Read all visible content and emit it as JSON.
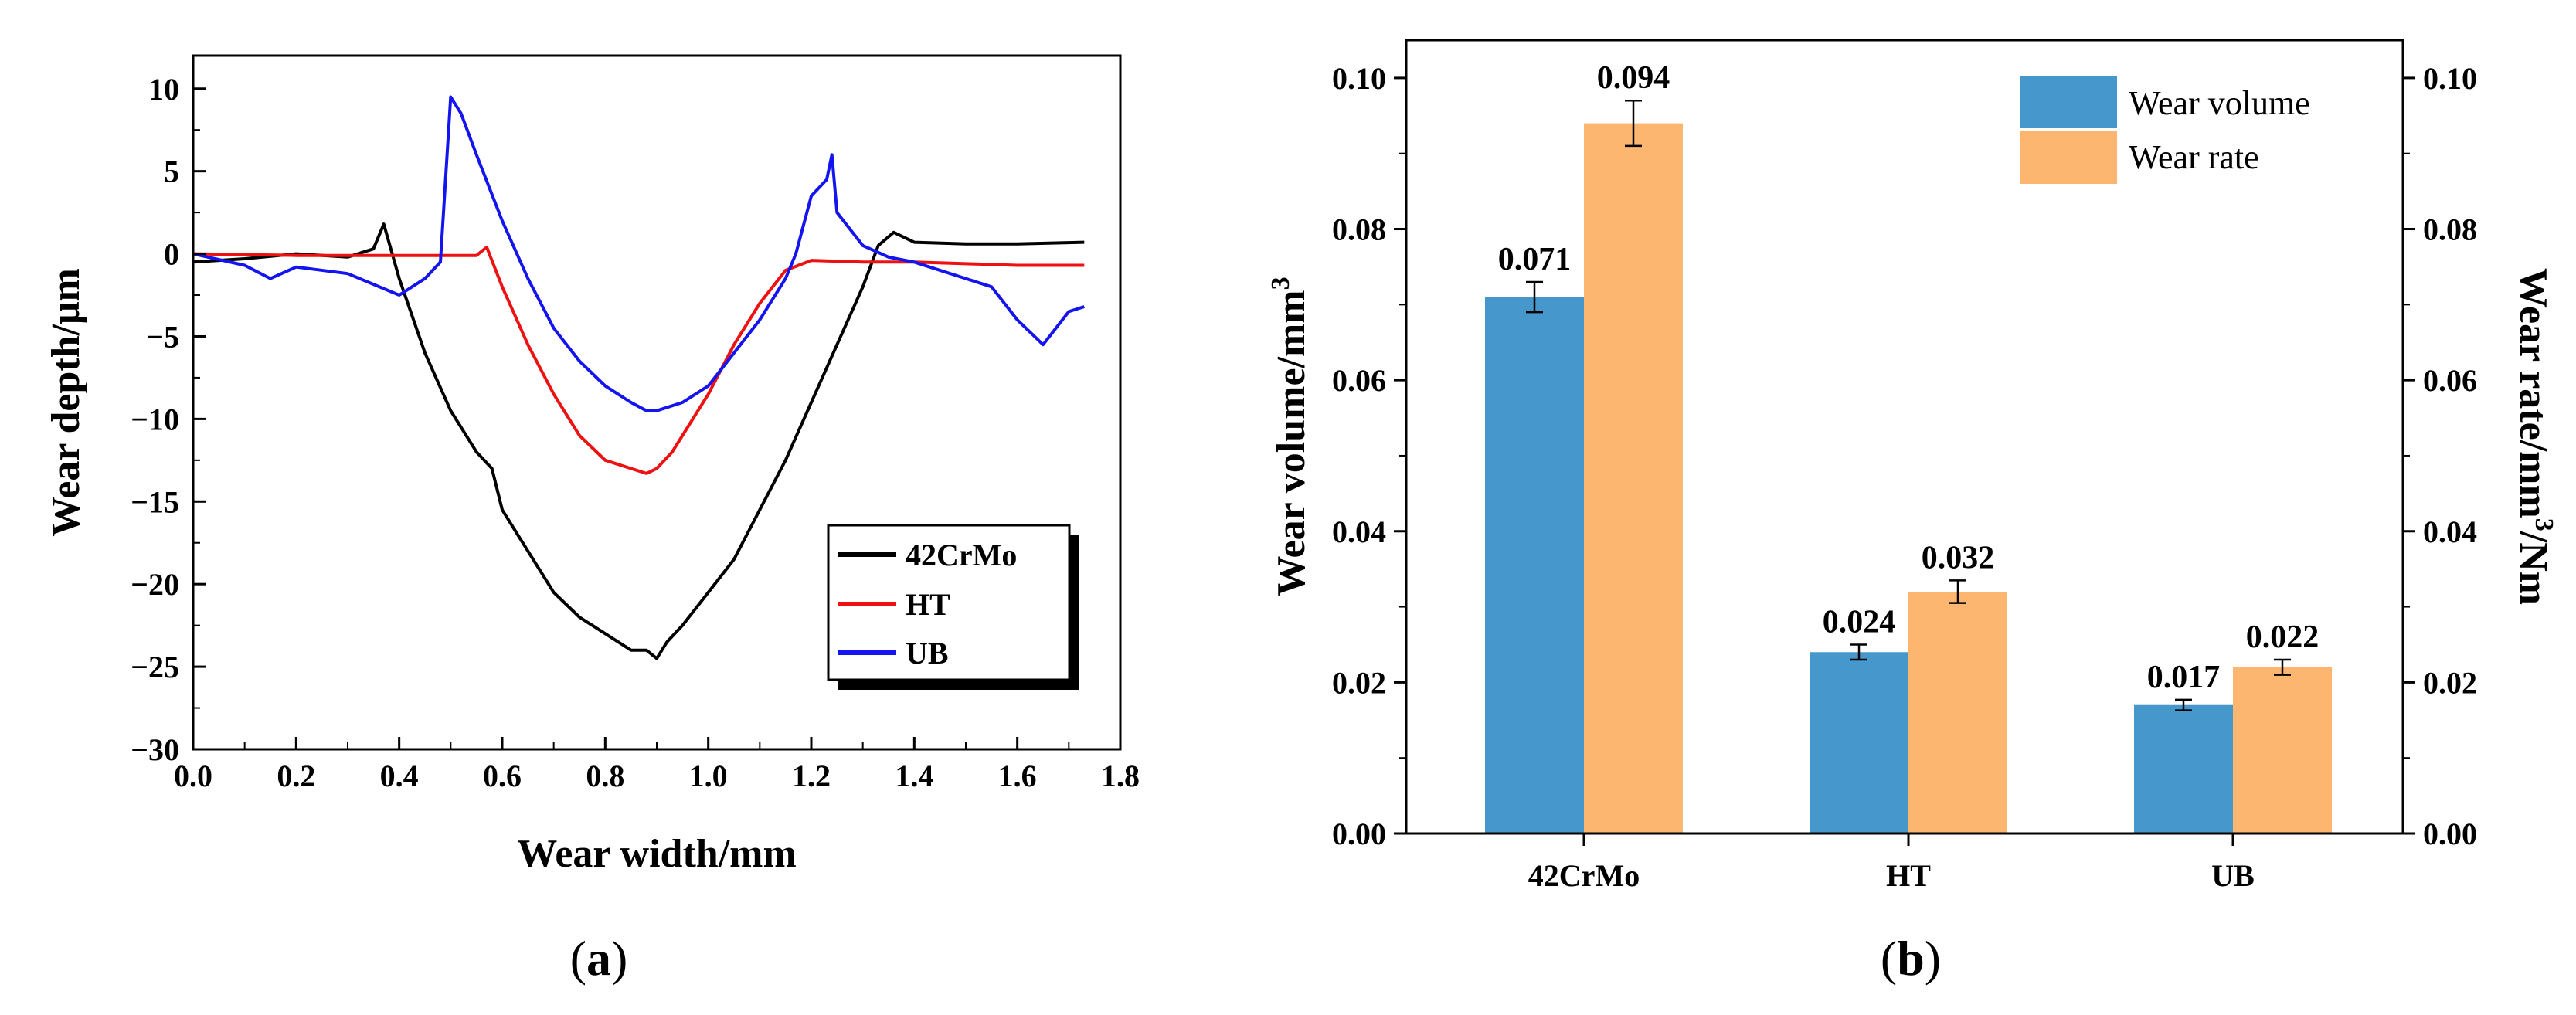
{
  "colors": {
    "c42CrMo": "#000000",
    "HT": "#ee1111",
    "UB": "#1414f0",
    "wear_volume": "#4697cc",
    "wear_rate": "#fdb66f"
  },
  "captions": [
    {
      "open": "(",
      "letter": "a",
      "close": ")"
    },
    {
      "open": "(",
      "letter": "b",
      "close": ")"
    }
  ],
  "chart_data": [
    {
      "id": "a",
      "type": "line",
      "xlabel": "Wear width/mm",
      "ylabel": "Wear depth/μm",
      "xlim": [
        0.0,
        1.8
      ],
      "ylim": [
        -30,
        12
      ],
      "xticks": [
        "0.0",
        "0.2",
        "0.4",
        "0.6",
        "0.8",
        "1.0",
        "1.2",
        "1.4",
        "1.6",
        "1.8"
      ],
      "yticks": [
        "10",
        "5",
        "0",
        "−5",
        "−10",
        "−15",
        "−20",
        "−25",
        "−30"
      ],
      "legend": [
        "42CrMo",
        "HT",
        "UB"
      ],
      "series": [
        {
          "name": "42CrMo",
          "x": [
            0.0,
            0.1,
            0.2,
            0.3,
            0.35,
            0.37,
            0.4,
            0.45,
            0.5,
            0.55,
            0.58,
            0.6,
            0.62,
            0.65,
            0.7,
            0.75,
            0.8,
            0.85,
            0.88,
            0.9,
            0.92,
            0.95,
            1.0,
            1.05,
            1.1,
            1.15,
            1.2,
            1.25,
            1.3,
            1.33,
            1.36,
            1.4,
            1.5,
            1.6,
            1.73
          ],
          "y": [
            -0.5,
            -0.3,
            0.0,
            -0.2,
            0.3,
            1.8,
            -1.5,
            -6.0,
            -9.5,
            -12.0,
            -13.0,
            -15.5,
            -16.5,
            -18.0,
            -20.5,
            -22.0,
            -23.0,
            -24.0,
            -24.0,
            -24.5,
            -23.5,
            -22.5,
            -20.5,
            -18.5,
            -15.5,
            -12.5,
            -9.0,
            -5.5,
            -2.0,
            0.5,
            1.3,
            0.7,
            0.6,
            0.6,
            0.7
          ]
        },
        {
          "name": "HT",
          "x": [
            0.0,
            0.2,
            0.4,
            0.55,
            0.57,
            0.6,
            0.65,
            0.7,
            0.75,
            0.8,
            0.85,
            0.88,
            0.9,
            0.93,
            0.96,
            1.0,
            1.05,
            1.1,
            1.15,
            1.2,
            1.3,
            1.4,
            1.5,
            1.6,
            1.73
          ],
          "y": [
            0.0,
            -0.1,
            -0.1,
            -0.1,
            0.4,
            -2.0,
            -5.5,
            -8.5,
            -11.0,
            -12.5,
            -13.0,
            -13.3,
            -13.0,
            -12.0,
            -10.5,
            -8.5,
            -5.5,
            -3.0,
            -1.0,
            -0.4,
            -0.5,
            -0.5,
            -0.6,
            -0.7,
            -0.7
          ]
        },
        {
          "name": "UB",
          "x": [
            0.0,
            0.1,
            0.15,
            0.2,
            0.3,
            0.4,
            0.45,
            0.48,
            0.5,
            0.52,
            0.55,
            0.6,
            0.65,
            0.7,
            0.75,
            0.8,
            0.85,
            0.88,
            0.9,
            0.95,
            1.0,
            1.05,
            1.1,
            1.15,
            1.17,
            1.2,
            1.23,
            1.24,
            1.25,
            1.3,
            1.35,
            1.4,
            1.5,
            1.55,
            1.6,
            1.65,
            1.7,
            1.73
          ],
          "y": [
            0.0,
            -0.7,
            -1.5,
            -0.8,
            -1.2,
            -2.5,
            -1.5,
            -0.5,
            9.5,
            8.5,
            6.0,
            2.0,
            -1.5,
            -4.5,
            -6.5,
            -8.0,
            -9.0,
            -9.5,
            -9.5,
            -9.0,
            -8.0,
            -6.0,
            -4.0,
            -1.5,
            0.0,
            3.5,
            4.5,
            6.0,
            2.5,
            0.5,
            -0.2,
            -0.5,
            -1.5,
            -2.0,
            -4.0,
            -5.5,
            -3.5,
            -3.2
          ]
        }
      ]
    },
    {
      "id": "b",
      "type": "bar",
      "categories": [
        "42CrMo",
        "HT",
        "UB"
      ],
      "ylabel": "Wear volume/mm³",
      "ylabel_left_base": "Wear volume/mm",
      "ylabel_left_sup": "3",
      "ylabel_right_base": "Wear rate/mm",
      "ylabel_right_sup": "3",
      "ylabel_right_tail": "/Nm",
      "ylim": [
        0.0,
        0.105
      ],
      "yticks": [
        "0.00",
        "0.02",
        "0.04",
        "0.06",
        "0.08",
        "0.10"
      ],
      "legend": [
        "Wear volume",
        "Wear rate"
      ],
      "series": [
        {
          "name": "Wear volume",
          "values": [
            0.071,
            0.024,
            0.017
          ],
          "labels": [
            "0.071",
            "0.024",
            "0.017"
          ],
          "errors": [
            0.002,
            0.001,
            0.0007
          ]
        },
        {
          "name": "Wear rate",
          "values": [
            0.094,
            0.032,
            0.022
          ],
          "labels": [
            "0.094",
            "0.032",
            "0.022"
          ],
          "errors": [
            0.003,
            0.0015,
            0.001
          ]
        }
      ]
    }
  ]
}
